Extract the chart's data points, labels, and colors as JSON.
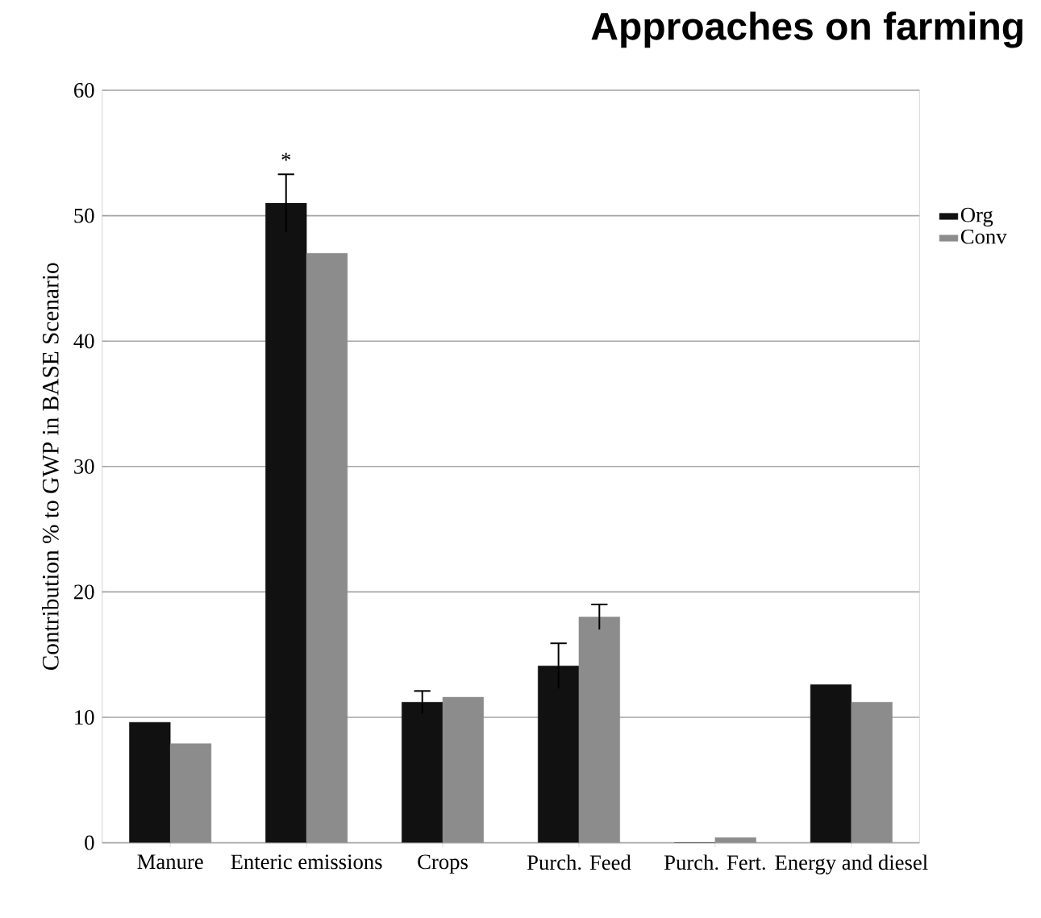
{
  "chart_data": {
    "type": "bar",
    "title": "Approaches on farming",
    "ylabel": "Contribution % to GWP in BASE Scenario",
    "categories": [
      "Manure",
      "Enteric emissions",
      "Crops",
      "Purch. Feed",
      "Purch. Fert.",
      "Energy and diesel"
    ],
    "series": [
      {
        "name": "Org",
        "color": "#111111",
        "values": [
          9.6,
          51,
          11.2,
          14.1,
          0,
          12.6
        ],
        "errors": [
          null,
          2.3,
          0.9,
          1.8,
          null,
          null
        ]
      },
      {
        "name": "Conv",
        "color": "#8c8c8c",
        "values": [
          7.9,
          47,
          11.6,
          18,
          0.4,
          11.2
        ],
        "errors": [
          null,
          null,
          null,
          1,
          null,
          null
        ]
      }
    ],
    "annotations": [
      "*"
    ],
    "ylim": [
      0,
      60
    ],
    "yticks": [
      0,
      10,
      20,
      30,
      40,
      50,
      60
    ],
    "grid": "y",
    "legend": "right"
  }
}
